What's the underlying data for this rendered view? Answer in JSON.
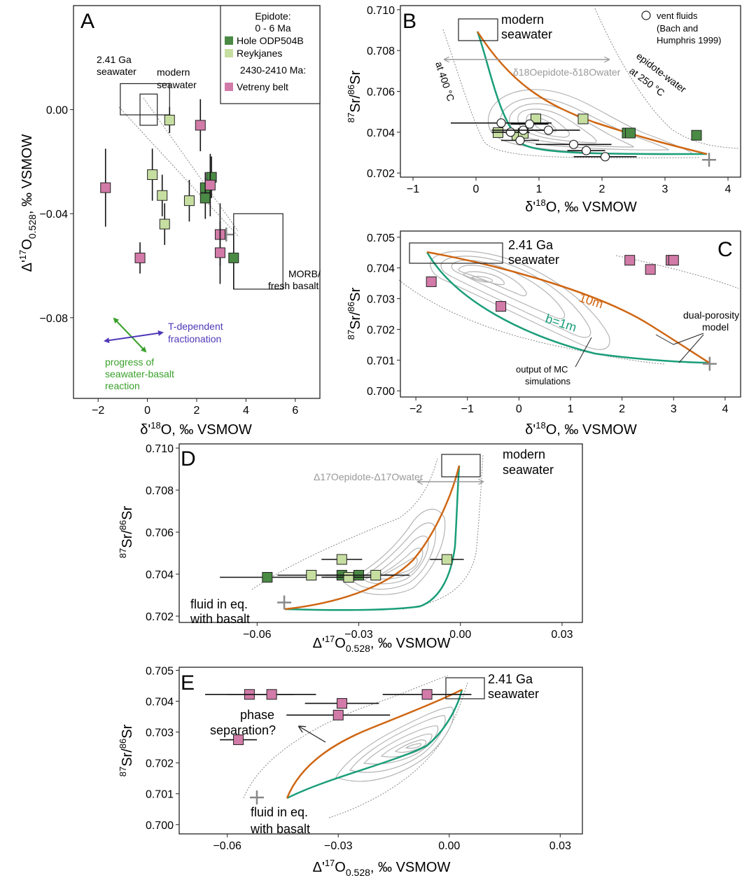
{
  "colors": {
    "hole": "#4a8a44",
    "reyk": "#c6dea0",
    "vetreny": "#d27aa8",
    "orange": "#cf6613",
    "teal": "#1a9e7a",
    "contour": "#b4b4b4",
    "grey": "#888888",
    "t_arrow": "#5038b8",
    "progress_arrow": "#39a02a"
  },
  "legend": {
    "title1": "Epidote:",
    "title2": "0 - 6 Ma",
    "hole": "Hole ODP504B",
    "reyk": "Reykjanes",
    "title3": "2430-2410 Ma:",
    "vet": "Vetreny belt"
  },
  "labels": {
    "a_letter": "A",
    "b_letter": "B",
    "c_letter": "C",
    "d_letter": "D",
    "e_letter": "E",
    "a_sw241_1": "2.41 Ga",
    "a_sw241_2": "seawater",
    "a_modern_1": "modern",
    "a_modern_2": "seawater",
    "a_morb_1": "MORB/",
    "a_morb_2": "fresh basalt",
    "a_t_1": "T-dependent",
    "a_t_2": "fractionation",
    "a_p_1": "progress of",
    "a_p_2": "seawater-basalt",
    "a_p_3": "reaction",
    "b_modern_1": "modern",
    "b_modern_2": "seawater",
    "b_vent_1": "vent fluids",
    "b_vent_2": "(Bach and",
    "b_vent_3": "Humphris 1999)",
    "b_400": "at 400 °C",
    "b_250_1": "epidote-water",
    "b_250_2": "at 250 °C",
    "b_diff": "δ18Oepidote-δ18Owater",
    "c_sw_1": "2.41 Ga",
    "c_sw_2": "seawater",
    "c_10m": "10m",
    "c_1m": "b=1m",
    "c_dual_1": "dual-porosity",
    "c_dual_2": "model",
    "c_mc_1": "output of MC",
    "c_mc_2": "simulations",
    "d_modern_1": "modern",
    "d_modern_2": "seawater",
    "d_diff": "Δ17Oepidote-Δ17Owater",
    "d_fluid_1": "fluid in eq.",
    "d_fluid_2": "with basalt",
    "e_sw_1": "2.41 Ga",
    "e_sw_2": "seawater",
    "e_phase_1": "phase",
    "e_phase_2": "separation?",
    "e_fluid_1": "fluid in eq.",
    "e_fluid_2": "with basalt"
  },
  "chart_data": [
    {
      "panel": "A",
      "type": "scatter",
      "xlabel": "δ'18O, ‰ VSMOW",
      "ylabel": "Δ'17O0.528, ‰ VSMOW",
      "xlim": [
        -3,
        7
      ],
      "ylim": [
        -0.111,
        0.04
      ],
      "xticks": [
        -2,
        0,
        2,
        4,
        6
      ],
      "yticks": [
        0.0,
        -0.04,
        -0.08
      ],
      "ytick_labels": [
        "0.00",
        "−0.04",
        "−0.08"
      ],
      "series": [
        {
          "name": "Hole ODP504B",
          "points": [
            [
              2.35,
              -0.03,
              0,
              0.006
            ],
            [
              2.35,
              -0.034,
              0,
              0.008
            ],
            [
              2.6,
              -0.026,
              0,
              0.008
            ],
            [
              3.5,
              -0.057,
              0,
              0.012
            ]
          ]
        },
        {
          "name": "Reykjanes",
          "points": [
            [
              0.9,
              -0.004,
              0,
              0.005
            ],
            [
              0.2,
              -0.025,
              0,
              0.01
            ],
            [
              0.6,
              -0.033,
              0,
              0.008
            ],
            [
              0.7,
              -0.044,
              0,
              0.008
            ],
            [
              1.7,
              -0.035,
              0,
              0.008
            ]
          ]
        },
        {
          "name": "Vetreny belt",
          "points": [
            [
              -1.7,
              -0.03,
              0,
              0.015
            ],
            [
              -0.3,
              -0.057,
              0,
              0.006
            ],
            [
              2.15,
              -0.006,
              0,
              0.01
            ],
            [
              2.55,
              -0.029,
              0,
              0.012
            ],
            [
              2.95,
              -0.048,
              0,
              0.012
            ],
            [
              2.95,
              -0.055,
              0,
              0.012
            ]
          ]
        }
      ],
      "reference_boxes": [
        {
          "label": "2.41 Ga seawater",
          "x": [
            -1.1,
            0.9
          ],
          "y": [
            -0.002,
            0.01
          ]
        },
        {
          "label": "modern seawater",
          "x": [
            -0.3,
            0.4
          ],
          "y": [
            -0.006,
            0.006
          ]
        },
        {
          "label": "MORB/ fresh basalt",
          "x": [
            3.5,
            5.5
          ],
          "y": [
            -0.069,
            -0.04
          ]
        }
      ],
      "crosses": [
        [
          3.2,
          -0.048
        ]
      ]
    },
    {
      "panel": "B",
      "type": "scatter",
      "xlabel": "δ'18O, ‰ VSMOW",
      "ylabel": "87Sr/86Sr",
      "xlim": [
        -1.2,
        4.2
      ],
      "ylim": [
        0.7018,
        0.7102
      ],
      "xticks": [
        -1,
        0,
        1,
        2,
        3,
        4
      ],
      "yticks": [
        0.702,
        0.704,
        0.706,
        0.708,
        0.71
      ],
      "ytick_labels": [
        "0.702",
        "0.704",
        "0.706",
        "0.708",
        "0.710"
      ],
      "series": [
        {
          "name": "Hole ODP504B",
          "points": [
            [
              2.4,
              0.70396
            ],
            [
              2.45,
              0.70396
            ],
            [
              3.5,
              0.70385
            ]
          ]
        },
        {
          "name": "Reykjanes",
          "points": [
            [
              0.35,
              0.70398
            ],
            [
              0.65,
              0.70385
            ],
            [
              0.75,
              0.70395
            ],
            [
              0.95,
              0.70465
            ],
            [
              1.7,
              0.70465
            ]
          ]
        },
        {
          "name": "vent fluids",
          "points": [
            [
              0.4,
              0.70445,
              0.8,
              0
            ],
            [
              0.55,
              0.704,
              0.3,
              0
            ],
            [
              0.7,
              0.7036,
              0.3,
              0
            ],
            [
              0.75,
              0.7041,
              0.5,
              0
            ],
            [
              0.85,
              0.7044,
              0.3,
              0
            ],
            [
              1.15,
              0.7041,
              0.5,
              0
            ],
            [
              1.55,
              0.7034,
              0.6,
              0
            ],
            [
              1.75,
              0.7031,
              0.3,
              0
            ],
            [
              2.05,
              0.7028,
              0.5,
              0
            ]
          ]
        }
      ],
      "reference_boxes": [
        {
          "label": "modern seawater",
          "x": [
            -0.3,
            0.3
          ],
          "y": [
            0.7088,
            0.71
          ]
        }
      ],
      "crosses": [
        [
          3.7,
          0.70265
        ]
      ]
    },
    {
      "panel": "C",
      "type": "scatter",
      "xlabel": "δ'18O, ‰ VSMOW",
      "ylabel": "87Sr/86Sr",
      "xlim": [
        -2.3,
        4.3
      ],
      "ylim": [
        0.6998,
        0.7052
      ],
      "xticks": [
        -2,
        -1,
        0,
        1,
        2,
        3,
        4
      ],
      "yticks": [
        0.7,
        0.701,
        0.702,
        0.703,
        0.704,
        0.705
      ],
      "ytick_labels": [
        "0.700",
        "0.701",
        "0.702",
        "0.703",
        "0.704",
        "0.705"
      ],
      "series": [
        {
          "name": "Vetreny belt",
          "points": [
            [
              -1.7,
              0.70355
            ],
            [
              -0.35,
              0.70275
            ],
            [
              2.15,
              0.70425
            ],
            [
              2.55,
              0.70395
            ],
            [
              2.95,
              0.70425
            ],
            [
              3.0,
              0.70425
            ]
          ]
        }
      ],
      "reference_boxes": [
        {
          "label": "2.41 Ga seawater",
          "x": [
            -2.1,
            -0.1
          ],
          "y": [
            0.704,
            0.7046
          ]
        }
      ],
      "crosses": [
        [
          3.7,
          0.70088
        ]
      ]
    },
    {
      "panel": "D",
      "type": "scatter",
      "xlabel": "Δ'17O0.528, ‰ VSMOW",
      "ylabel": "87Sr/86Sr",
      "xlim": [
        -0.083,
        0.036
      ],
      "ylim": [
        0.7017,
        0.7102
      ],
      "xticks": [
        -0.06,
        -0.03,
        0.0,
        0.03
      ],
      "yticks": [
        0.702,
        0.704,
        0.706,
        0.708,
        0.71
      ],
      "xtick_labels": [
        "−0.06",
        "−0.03",
        "0.00",
        "0.03"
      ],
      "ytick_labels": [
        "0.702",
        "0.704",
        "0.706",
        "0.708",
        "0.710"
      ],
      "series": [
        {
          "name": "Hole ODP504B",
          "points": [
            [
              -0.057,
              0.70385,
              0.014,
              0
            ],
            [
              -0.035,
              0.70395,
              0.01,
              0
            ],
            [
              -0.03,
              0.70395,
              0.01,
              0
            ]
          ]
        },
        {
          "name": "Reykjanes",
          "points": [
            [
              -0.044,
              0.70395,
              0.01,
              0
            ],
            [
              -0.035,
              0.7047,
              0.006,
              0
            ],
            [
              -0.033,
              0.70385,
              0.008,
              0
            ],
            [
              -0.025,
              0.70395,
              0.01,
              0
            ],
            [
              -0.004,
              0.7047,
              0.005,
              0
            ]
          ]
        }
      ],
      "reference_boxes": [
        {
          "label": "modern seawater",
          "x": [
            -0.006,
            0.0055
          ],
          "y": [
            0.7088,
            0.71
          ]
        }
      ],
      "crosses": [
        [
          -0.052,
          0.70265
        ]
      ]
    },
    {
      "panel": "E",
      "type": "scatter",
      "xlabel": "Δ'17O0.528, ‰ VSMOW",
      "ylabel": "87Sr/86Sr",
      "xlim": [
        -0.073,
        0.036
      ],
      "ylim": [
        0.6997,
        0.7051
      ],
      "xticks": [
        -0.06,
        -0.03,
        0.0,
        0.03
      ],
      "yticks": [
        0.7,
        0.701,
        0.702,
        0.703,
        0.704,
        0.705
      ],
      "xtick_labels": [
        "−0.06",
        "−0.03",
        "0.00",
        "0.03"
      ],
      "ytick_labels": [
        "0.700",
        "0.701",
        "0.702",
        "0.703",
        "0.704",
        "0.705"
      ],
      "series": [
        {
          "name": "Vetreny belt",
          "points": [
            [
              -0.057,
              0.70275,
              0.005,
              0
            ],
            [
              -0.054,
              0.70422,
              0.012,
              0
            ],
            [
              -0.048,
              0.70422,
              0.012,
              0
            ],
            [
              -0.03,
              0.70355,
              0.014,
              0
            ],
            [
              -0.029,
              0.70393,
              0.01,
              0
            ],
            [
              -0.006,
              0.70422,
              0.012,
              0
            ]
          ]
        }
      ],
      "reference_boxes": [
        {
          "label": "2.41 Ga seawater",
          "x": [
            -0.004,
            0.0055
          ],
          "y": [
            0.7042,
            0.7048
          ]
        }
      ],
      "crosses": [
        [
          -0.052,
          0.70088
        ]
      ]
    }
  ]
}
